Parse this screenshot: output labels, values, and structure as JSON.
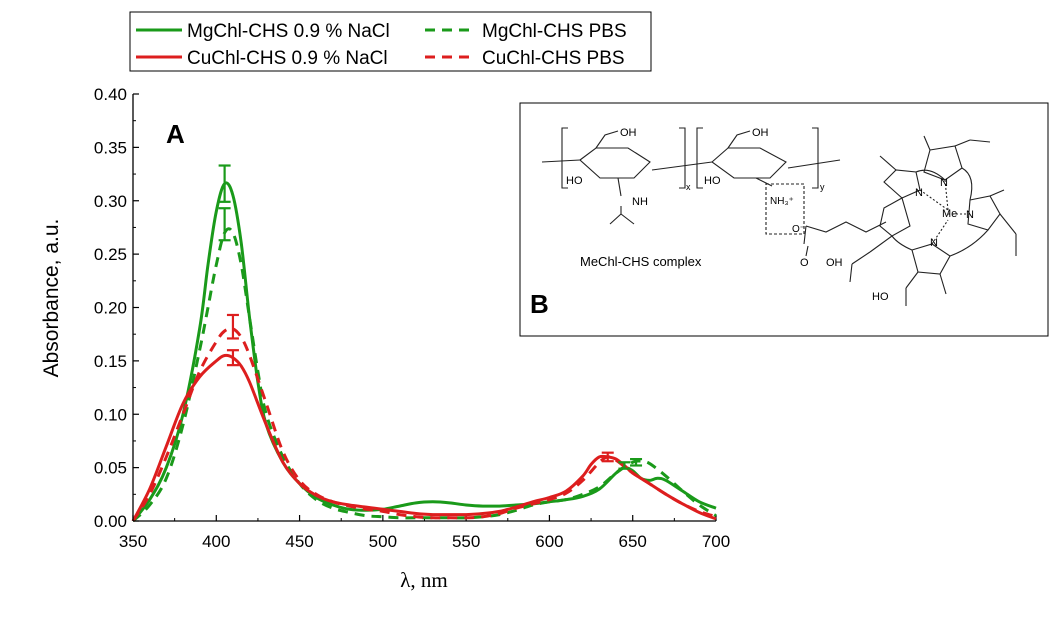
{
  "chart_data": {
    "type": "line",
    "panel_labels": {
      "a": "A",
      "b": "B"
    },
    "xlabel": "λ, nm",
    "ylabel": "Absorbance, a.u.",
    "xlim": [
      350,
      700
    ],
    "ylim": [
      0,
      0.4
    ],
    "xticks": [
      350,
      400,
      450,
      500,
      550,
      600,
      650,
      700
    ],
    "xtick_labels": [
      "350",
      "400",
      "450",
      "500",
      "550",
      "600",
      "650",
      "700"
    ],
    "yticks": [
      0,
      0.05,
      0.1,
      0.15,
      0.2,
      0.25,
      0.3,
      0.35,
      0.4
    ],
    "ytick_labels": [
      "0.00",
      "0.05",
      "0.10",
      "0.15",
      "0.20",
      "0.25",
      "0.30",
      "0.35",
      "0.40"
    ],
    "grid": false,
    "legend_position": "top-left",
    "series": [
      {
        "name": "MgChl-CHS 0.9 % NaCl",
        "color": "#1a9a1a",
        "dash": "solid",
        "x": [
          350,
          360,
          370,
          380,
          390,
          395,
          400,
          405,
          410,
          415,
          420,
          425,
          430,
          440,
          450,
          460,
          470,
          480,
          490,
          500,
          510,
          520,
          530,
          540,
          550,
          560,
          570,
          580,
          590,
          600,
          610,
          620,
          630,
          640,
          645,
          650,
          655,
          660,
          665,
          670,
          680,
          690,
          700
        ],
        "y": [
          0.0,
          0.02,
          0.05,
          0.1,
          0.18,
          0.24,
          0.29,
          0.316,
          0.305,
          0.26,
          0.19,
          0.13,
          0.09,
          0.055,
          0.035,
          0.022,
          0.015,
          0.011,
          0.01,
          0.011,
          0.014,
          0.017,
          0.018,
          0.017,
          0.015,
          0.014,
          0.014,
          0.015,
          0.016,
          0.018,
          0.02,
          0.023,
          0.03,
          0.045,
          0.05,
          0.047,
          0.04,
          0.038,
          0.04,
          0.038,
          0.028,
          0.018,
          0.012
        ]
      },
      {
        "name": "MgChl-CHS PBS",
        "color": "#1a9a1a",
        "dash": "dashed",
        "x": [
          350,
          360,
          370,
          380,
          390,
          395,
          400,
          405,
          410,
          415,
          420,
          425,
          430,
          440,
          450,
          460,
          470,
          480,
          490,
          500,
          510,
          520,
          530,
          540,
          550,
          560,
          570,
          580,
          590,
          600,
          610,
          620,
          630,
          640,
          650,
          655,
          660,
          670,
          680,
          690,
          700
        ],
        "y": [
          0.0,
          0.015,
          0.04,
          0.09,
          0.16,
          0.2,
          0.24,
          0.27,
          0.27,
          0.24,
          0.19,
          0.14,
          0.1,
          0.06,
          0.035,
          0.02,
          0.012,
          0.008,
          0.005,
          0.004,
          0.003,
          0.003,
          0.003,
          0.003,
          0.003,
          0.004,
          0.006,
          0.01,
          0.015,
          0.018,
          0.02,
          0.025,
          0.032,
          0.045,
          0.055,
          0.056,
          0.054,
          0.042,
          0.028,
          0.015,
          0.005
        ]
      },
      {
        "name": "CuChl-CHS 0.9 % NaCl",
        "color": "#dd1e1e",
        "dash": "solid",
        "x": [
          350,
          360,
          370,
          380,
          390,
          400,
          405,
          410,
          415,
          420,
          430,
          440,
          450,
          460,
          470,
          480,
          490,
          500,
          510,
          520,
          530,
          540,
          550,
          560,
          570,
          580,
          590,
          600,
          610,
          620,
          625,
          630,
          635,
          640,
          645,
          650,
          660,
          670,
          680,
          690,
          700
        ],
        "y": [
          0.0,
          0.03,
          0.07,
          0.11,
          0.135,
          0.15,
          0.155,
          0.153,
          0.145,
          0.13,
          0.09,
          0.055,
          0.035,
          0.024,
          0.018,
          0.015,
          0.013,
          0.011,
          0.009,
          0.007,
          0.006,
          0.006,
          0.006,
          0.007,
          0.009,
          0.013,
          0.018,
          0.022,
          0.028,
          0.042,
          0.053,
          0.06,
          0.06,
          0.058,
          0.052,
          0.045,
          0.035,
          0.025,
          0.016,
          0.008,
          0.002
        ]
      },
      {
        "name": "CuChl-CHS PBS",
        "color": "#dd1e1e",
        "dash": "dashed",
        "x": [
          350,
          360,
          370,
          380,
          390,
          400,
          405,
          410,
          415,
          420,
          430,
          440,
          450,
          460,
          470,
          480,
          490,
          500,
          510,
          520,
          530,
          540,
          550,
          560,
          570,
          580,
          590,
          600,
          610,
          620,
          630,
          635,
          640,
          650,
          660,
          670,
          680,
          690,
          700
        ],
        "y": [
          0.0,
          0.025,
          0.06,
          0.1,
          0.14,
          0.168,
          0.178,
          0.18,
          0.172,
          0.155,
          0.11,
          0.065,
          0.038,
          0.025,
          0.018,
          0.014,
          0.011,
          0.009,
          0.006,
          0.004,
          0.003,
          0.003,
          0.003,
          0.004,
          0.007,
          0.012,
          0.016,
          0.02,
          0.026,
          0.038,
          0.055,
          0.06,
          0.057,
          0.045,
          0.035,
          0.025,
          0.016,
          0.009,
          0.004
        ]
      }
    ],
    "error_bars": [
      {
        "series": "MgChl-CHS 0.9 % NaCl",
        "x": 405,
        "y": 0.316,
        "err": 0.017
      },
      {
        "series": "MgChl-CHS PBS",
        "x": 405,
        "y": 0.278,
        "err": 0.015
      },
      {
        "series": "CuChl-CHS PBS",
        "x": 410,
        "y": 0.182,
        "err": 0.011
      },
      {
        "series": "CuChl-CHS 0.9 % NaCl",
        "x": 410,
        "y": 0.153,
        "err": 0.007
      },
      {
        "series": "CuChl-CHS 0.9 % NaCl",
        "x": 635,
        "y": 0.06,
        "err": 0.004
      },
      {
        "series": "MgChl-CHS 0.9 % NaCl",
        "x": 645,
        "y": 0.052,
        "err": 0.003
      },
      {
        "series": "MgChl-CHS PBS",
        "x": 652,
        "y": 0.055,
        "err": 0.003
      }
    ]
  },
  "inset": {
    "caption": "MeChl-CHS complex",
    "labels": {
      "oh1": "OH",
      "oh2": "OH",
      "ho1": "HO",
      "ho2": "HO",
      "nh": "NH",
      "x_sub": "x",
      "y_sub": "y",
      "nh3": "NH₃⁺",
      "me": "Me",
      "n": "N",
      "o": "O",
      "o_minus": "O⁻",
      "cooh1": "OH",
      "cooh2": "HO"
    }
  }
}
